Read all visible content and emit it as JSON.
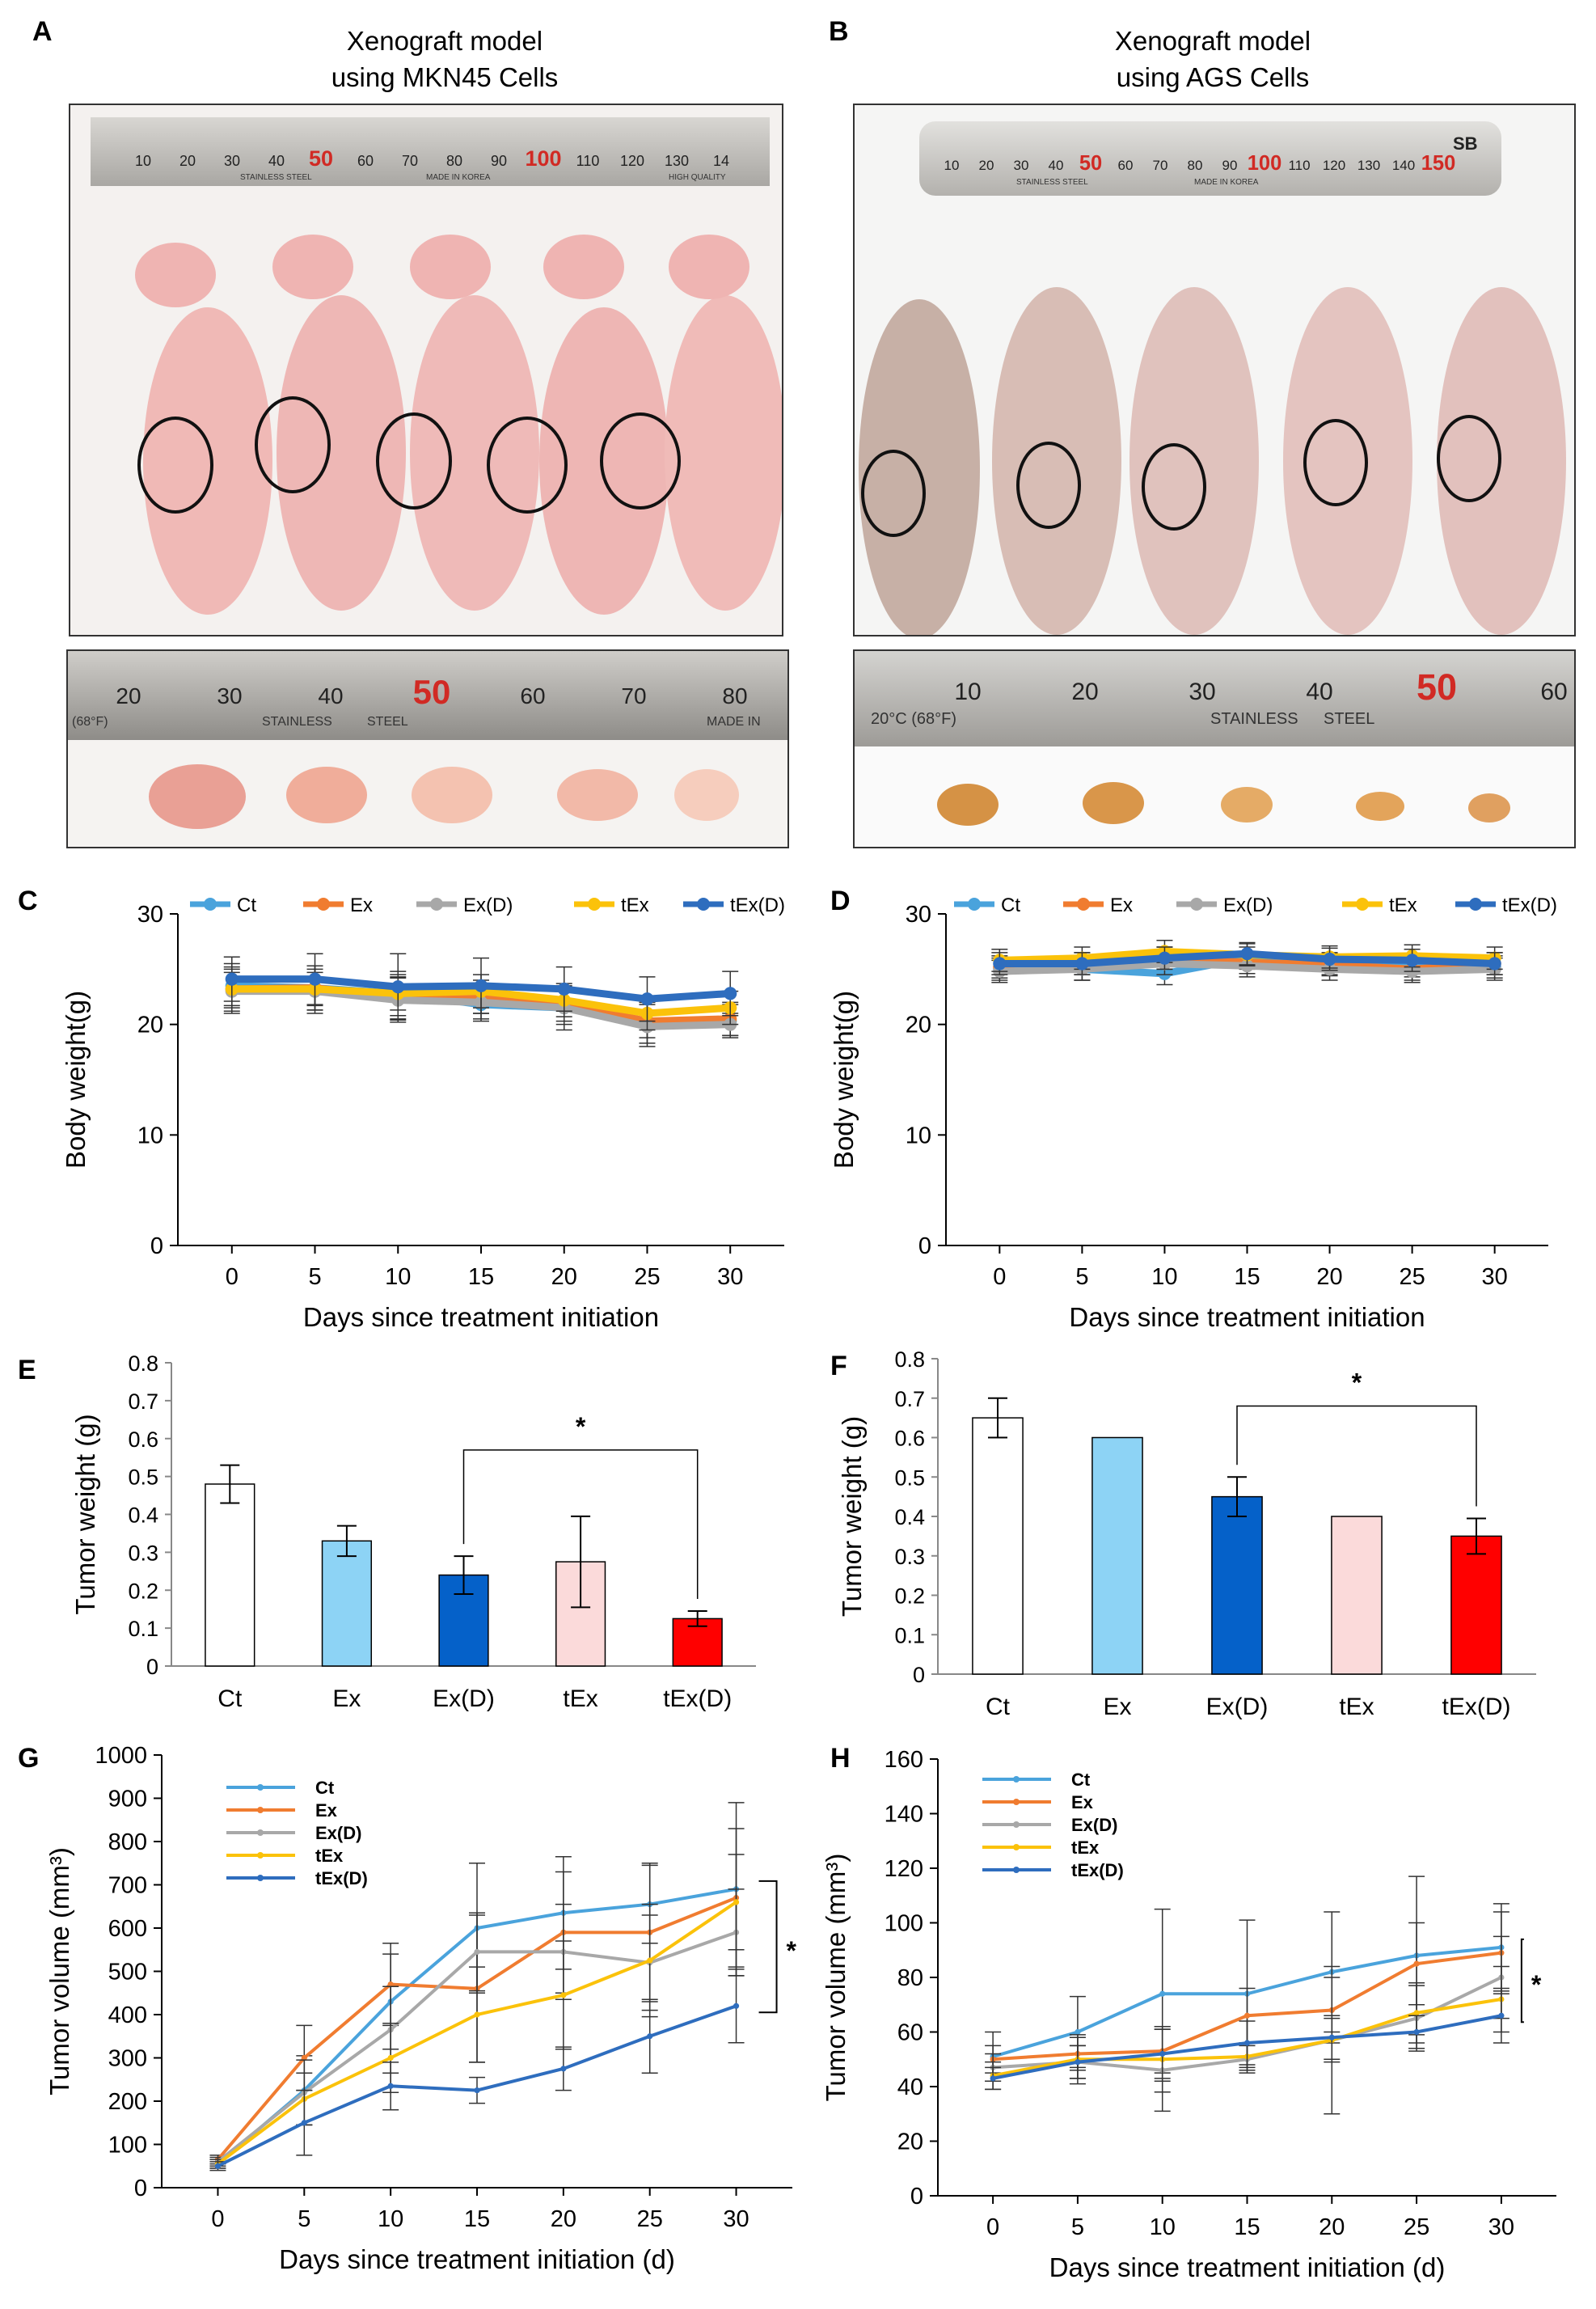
{
  "panels": {
    "A": {
      "letter": "A",
      "title_line1": "Xenograft model",
      "title_line2": "using MKN45 Cells",
      "ruler_top_labels": [
        "10",
        "20",
        "30",
        "40",
        "50",
        "60",
        "70",
        "80",
        "90",
        "100",
        "110",
        "120",
        "130",
        "14"
      ],
      "ruler_bottom_labels": [
        "20",
        "30",
        "40",
        "50",
        "60",
        "70",
        "80"
      ],
      "ruler_top_text": [
        "STAINLESS STEEL",
        "MADE IN KOREA",
        "HIGH QUALITY"
      ],
      "ruler_bottom_text": [
        "(68°F)",
        "STAINLESS",
        "STEEL",
        "MADE IN"
      ]
    },
    "B": {
      "letter": "B",
      "title_line1": "Xenograft model",
      "title_line2": "using AGS Cells",
      "ruler_top_labels": [
        "10",
        "20",
        "30",
        "40",
        "50",
        "60",
        "70",
        "80",
        "90",
        "100",
        "110",
        "120",
        "130",
        "140",
        "150"
      ],
      "ruler_bottom_labels": [
        "10",
        "20",
        "30",
        "40",
        "50",
        "60"
      ],
      "ruler_top_text": [
        "STAINLESS STEEL",
        "MADE IN KOREA",
        "SB"
      ],
      "ruler_bottom_text": [
        "20°C (68°F)",
        "STAINLESS",
        "STEEL"
      ]
    }
  },
  "colors": {
    "Ct": "#4AA3DC",
    "Ex": "#F07C30",
    "Ex(D)": "#A8A8A8",
    "tEx": "#FBC20A",
    "tEx(D)": "#2E6DBE",
    "bar_Ct": "#FFFFFF",
    "bar_Ex": "#8DD3F5",
    "bar_ExD": "#0561C9",
    "bar_tEx": "#FBDADA",
    "bar_tExD": "#FF0000"
  },
  "chart_data": [
    {
      "id": "C",
      "letter": "C",
      "type": "line",
      "ylabel": "Body weight(g)",
      "xlabel": "Days since treatment initiation",
      "x": [
        0,
        5,
        10,
        15,
        20,
        25,
        30
      ],
      "ylim": [
        0,
        30
      ],
      "yticks": [
        0,
        10,
        20,
        30
      ],
      "legend": [
        "Ct",
        "Ex",
        "Ex(D)",
        "tEx",
        "tEx(D)"
      ],
      "series": [
        {
          "name": "Ct",
          "values": [
            23.5,
            23.3,
            22.8,
            21.8,
            21.5,
            20.0,
            20.3
          ],
          "err": [
            2,
            2,
            2,
            1.5,
            2,
            2,
            1.5
          ]
        },
        {
          "name": "Ex",
          "values": [
            23.2,
            23.3,
            22.5,
            22.5,
            21.8,
            20.3,
            20.5
          ],
          "err": [
            2,
            2,
            2,
            1.5,
            1.5,
            1.5,
            1.5
          ]
        },
        {
          "name": "Ex(D)",
          "values": [
            23.0,
            23.0,
            22.2,
            22.0,
            21.5,
            19.8,
            20.0
          ],
          "err": [
            2,
            2,
            2,
            1.5,
            1.5,
            1.5,
            1
          ]
        },
        {
          "name": "tEx",
          "values": [
            23.2,
            23.2,
            22.8,
            23.0,
            22.2,
            21.0,
            21.5
          ],
          "err": [
            1.5,
            1.5,
            1.5,
            1.5,
            1.5,
            1.5,
            1.5
          ]
        },
        {
          "name": "tEx(D)",
          "values": [
            24.1,
            24.1,
            23.4,
            23.5,
            23.2,
            22.3,
            22.8
          ],
          "err": [
            2,
            2.3,
            3,
            2.5,
            2,
            2,
            2
          ]
        }
      ]
    },
    {
      "id": "D",
      "letter": "D",
      "type": "line",
      "ylabel": "Body weight(g)",
      "xlabel": "Days since treatment initiation",
      "x": [
        0,
        5,
        10,
        15,
        20,
        25,
        30
      ],
      "ylim": [
        0,
        30
      ],
      "yticks": [
        0,
        10,
        20,
        30
      ],
      "legend": [
        "Ct",
        "Ex",
        "Ex(D)",
        "tEx",
        "tEx(D)"
      ],
      "series": [
        {
          "name": "Ct",
          "values": [
            25.0,
            25.0,
            24.6,
            26.0,
            25.5,
            25.3,
            25.2
          ],
          "err": [
            1,
            1,
            1,
            1,
            1,
            1,
            1
          ]
        },
        {
          "name": "Ex",
          "values": [
            25.2,
            25.5,
            26.0,
            25.6,
            25.4,
            25.0,
            25.5
          ],
          "err": [
            1,
            1,
            1,
            1,
            1,
            1,
            1
          ]
        },
        {
          "name": "Ex(D)",
          "values": [
            24.8,
            25.0,
            25.5,
            25.3,
            25.0,
            24.8,
            25.0
          ],
          "err": [
            1,
            1,
            1,
            1,
            1,
            1,
            1
          ]
        },
        {
          "name": "tEx",
          "values": [
            25.8,
            26.0,
            26.6,
            26.3,
            26.1,
            26.2,
            26.0
          ],
          "err": [
            1,
            1,
            1,
            1,
            1,
            1,
            1
          ]
        },
        {
          "name": "tEx(D)",
          "values": [
            25.5,
            25.5,
            26.0,
            26.4,
            25.9,
            25.8,
            25.5
          ],
          "err": [
            1,
            1,
            1,
            1,
            1,
            1,
            1
          ]
        }
      ]
    },
    {
      "id": "E",
      "letter": "E",
      "type": "bar",
      "ylabel": "Tumor weight (g)",
      "categories": [
        "Ct",
        "Ex",
        "Ex(D)",
        "tEx",
        "tEx(D)"
      ],
      "values": [
        0.48,
        0.33,
        0.24,
        0.275,
        0.125
      ],
      "err": [
        0.05,
        0.04,
        0.05,
        0.12,
        0.02
      ],
      "ylim": [
        0,
        0.8
      ],
      "yticks": [
        "0",
        "0.1",
        "0.2",
        "0.3",
        "0.4",
        "0.5",
        "0.6",
        "0.7",
        "0.8"
      ],
      "significance": {
        "from": "Ex(D)",
        "to": "tEx(D)",
        "label": "*"
      }
    },
    {
      "id": "F",
      "letter": "F",
      "type": "bar",
      "ylabel": "Tumor weight (g)",
      "categories": [
        "Ct",
        "Ex",
        "Ex(D)",
        "tEx",
        "tEx(D)"
      ],
      "values": [
        0.65,
        0.6,
        0.45,
        0.4,
        0.35
      ],
      "err": [
        0.05,
        0,
        0.05,
        0,
        0.045
      ],
      "ylim": [
        0,
        0.8
      ],
      "yticks": [
        "0",
        "0.1",
        "0.2",
        "0.3",
        "0.4",
        "0.5",
        "0.6",
        "0.7",
        "0.8"
      ],
      "significance": {
        "from": "Ex(D)",
        "to": "tEx(D)",
        "label": "*"
      }
    },
    {
      "id": "G",
      "letter": "G",
      "type": "line",
      "ylabel": "Tumor volume (mm³)",
      "xlabel": "Days since treatment initiation (d)",
      "x": [
        0,
        5,
        10,
        15,
        20,
        25,
        30
      ],
      "ylim": [
        0,
        1000
      ],
      "yticks": [
        "0",
        "100",
        "200",
        "300",
        "400",
        "500",
        "600",
        "700",
        "800",
        "900",
        "1000"
      ],
      "legend": [
        "Ct",
        "Ex",
        "Ex(D)",
        "tEx",
        "tEx(D)"
      ],
      "significance": {
        "from": "Ct",
        "to": "tEx(D)",
        "label": "*"
      },
      "series": [
        {
          "name": "Ct",
          "values": [
            55,
            225,
            430,
            600,
            635,
            655,
            690
          ],
          "err": [
            10,
            80,
            110,
            150,
            130,
            90,
            200
          ]
        },
        {
          "name": "Ex",
          "values": [
            65,
            300,
            470,
            460,
            590,
            590,
            670
          ],
          "err": [
            10,
            75,
            95,
            170,
            140,
            160,
            160
          ]
        },
        {
          "name": "Ex(D)",
          "values": [
            60,
            220,
            365,
            545,
            545,
            520,
            590
          ],
          "err": [
            10,
            75,
            100,
            90,
            110,
            110,
            100
          ]
        },
        {
          "name": "tEx",
          "values": [
            55,
            205,
            300,
            400,
            445,
            525,
            660
          ],
          "err": [
            10,
            60,
            80,
            110,
            125,
            130,
            110
          ]
        },
        {
          "name": "tEx(D)",
          "values": [
            50,
            150,
            235,
            225,
            275,
            350,
            420
          ],
          "err": [
            10,
            75,
            55,
            30,
            50,
            85,
            85
          ]
        }
      ]
    },
    {
      "id": "H",
      "letter": "H",
      "type": "line",
      "ylabel": "Tumor volume (mm³)",
      "xlabel": "Days since treatment initiation (d)",
      "x": [
        0,
        5,
        10,
        15,
        20,
        25,
        30
      ],
      "ylim": [
        0,
        160
      ],
      "yticks": [
        "0",
        "20",
        "40",
        "60",
        "80",
        "100",
        "120",
        "140",
        "160"
      ],
      "legend": [
        "Ct",
        "Ex",
        "Ex(D)",
        "tEx",
        "tEx(D)"
      ],
      "significance": {
        "from": "Ct",
        "to": "tEx(D)",
        "label": "*"
      },
      "series": [
        {
          "name": "Ct",
          "values": [
            51,
            60,
            74,
            74,
            82,
            88,
            91
          ],
          "err": [
            9,
            13,
            31,
            27,
            22,
            29,
            16
          ]
        },
        {
          "name": "Ex",
          "values": [
            50,
            52,
            53,
            66,
            68,
            85,
            89
          ],
          "err": [
            5,
            6,
            8,
            10,
            12,
            15,
            15
          ]
        },
        {
          "name": "Ex(D)",
          "values": [
            47,
            49,
            46,
            50,
            57,
            65,
            80
          ],
          "err": [
            5,
            6,
            15,
            5,
            27,
            12,
            15
          ]
        },
        {
          "name": "tEx",
          "values": [
            44,
            50,
            50,
            51,
            57,
            67,
            72
          ],
          "err": [
            5,
            9,
            12,
            5,
            8,
            11,
            12
          ]
        },
        {
          "name": "tEx(D)",
          "values": [
            43,
            49,
            52,
            56,
            58,
            60,
            66
          ],
          "err": [
            4,
            6,
            10,
            8,
            8,
            6,
            10
          ]
        }
      ]
    }
  ]
}
